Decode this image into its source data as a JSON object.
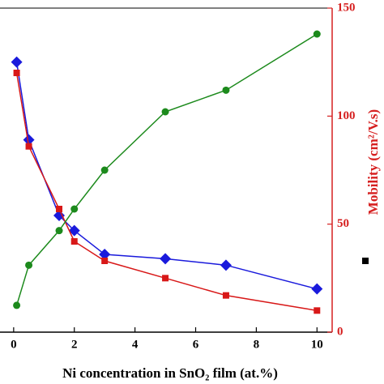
{
  "chart_data": {
    "type": "line",
    "x_label": "Ni concentration in SnO₂ film (at.%)",
    "y2_label": "Mobility (cm²/V.s)",
    "xlim": [
      -0.45,
      10.5
    ],
    "xticks": [
      0,
      2,
      4,
      6,
      8,
      10
    ],
    "y2lim": [
      0,
      150
    ],
    "y2ticks": [
      0,
      50,
      100,
      150
    ],
    "y2_color": "#d62020",
    "series": [
      {
        "color": "#1a1adc",
        "marker": "diamond",
        "x": [
          0.1,
          0.5,
          1.5,
          2,
          3,
          5,
          7,
          10
        ],
        "values": [
          125,
          89,
          54,
          47,
          36,
          34,
          31,
          20
        ]
      },
      {
        "color": "#d81818",
        "marker": "square",
        "axis": "y2",
        "x": [
          0.1,
          0.5,
          1.5,
          2,
          3,
          5,
          7,
          10
        ],
        "values": [
          120,
          86,
          57,
          42,
          33,
          25,
          17,
          10
        ]
      },
      {
        "color": "#1c8a1c",
        "marker": "circle",
        "x": [
          0.1,
          0.5,
          1.5,
          2,
          3,
          5,
          7,
          10
        ],
        "values": [
          12.4,
          31,
          47,
          57,
          75,
          102,
          112,
          138
        ]
      }
    ]
  }
}
